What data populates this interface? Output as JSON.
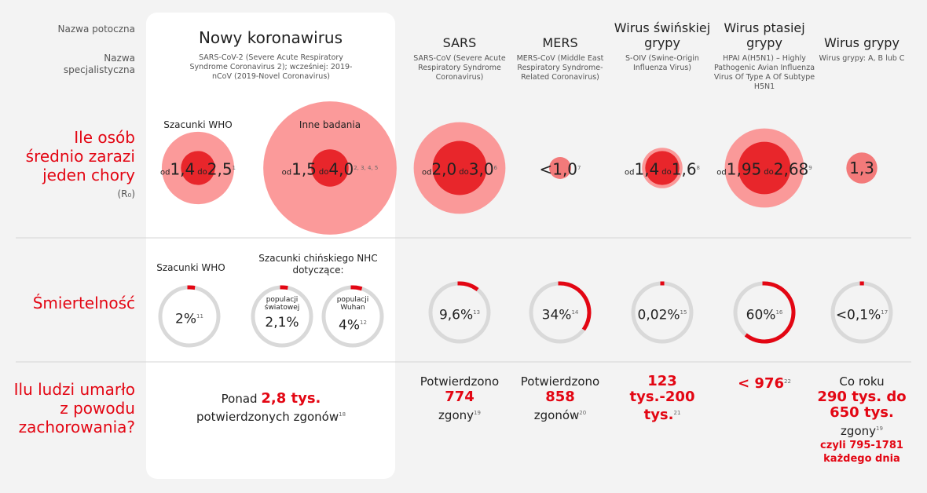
{
  "row_labels": {
    "common_name": "Nazwa potoczna",
    "specialist_name": "Nazwa specjalistyczna",
    "r0": "Ile osób średnio zarazi jeden chory",
    "r0_symbol": "(R₀)",
    "mortality": "Śmiertelność",
    "deaths": "Ilu ludzi umarło z powodu zachorowania?"
  },
  "novel": {
    "name": "Nowy koronawirus",
    "specialist": "SARS-CoV-2 (Severe Acute Respiratory Syndrome Coronavirus 2); wcześniej: 2019-nCoV (2019-Novel Coronavirus)",
    "r0": [
      {
        "caption": "Szacunki WHO",
        "from": "od",
        "low": 1.4,
        "low_label": "1,4",
        "to": "do",
        "high": 2.5,
        "high_label": "2,5",
        "ref": "1"
      },
      {
        "caption": "Inne badania",
        "from": "od",
        "low": 1.5,
        "low_label": "1,5",
        "to": "do",
        "high": 4.0,
        "high_label": "4,0",
        "ref": "2, 3, 4, 5"
      }
    ],
    "mortality_captions": {
      "who": "Szacunki WHO",
      "nhc": "Szacunki chińskiego NHC dotyczące:"
    },
    "mortality": [
      {
        "percent": 2,
        "label": "2%",
        "ref": "11"
      },
      {
        "sublabel": "populacji światowej",
        "percent": 2.1,
        "label": "2,1%"
      },
      {
        "sublabel": "populacji Wuhan",
        "percent": 4,
        "label": "4%",
        "ref": "12"
      }
    ],
    "deaths": {
      "prefix": "Ponad",
      "value": "2,8 tys.",
      "suffix": "potwierdzonych zgonów",
      "ref": "18"
    }
  },
  "viruses": [
    {
      "name": "SARS",
      "specialist": "SARS-CoV (Severe Acute Respiratory Syndrome Coronavirus)",
      "r0": {
        "from": "od",
        "low": 2.0,
        "low_label": "2,0",
        "to": "do",
        "high": 3.0,
        "high_label": "3,0",
        "ref": "6"
      },
      "mortality": {
        "percent": 9.6,
        "label": "9,6%",
        "ref": "13"
      },
      "deaths": {
        "prefix": "Potwierdzono",
        "value": "774",
        "suffix": "zgony",
        "ref": "19"
      }
    },
    {
      "name": "MERS",
      "specialist": "MERS-CoV (Middle East Respiratory Syndrome-Related Coronavirus)",
      "r0": {
        "high": 1.0,
        "high_label": "<1,0",
        "ref": "7"
      },
      "mortality": {
        "percent": 34,
        "label": "34%",
        "ref": "14"
      },
      "deaths": {
        "prefix": "Potwierdzono",
        "value": "858",
        "suffix": "zgonów",
        "ref": "20"
      }
    },
    {
      "name": "Wirus świńskiej grypy",
      "specialist": "S-OIV (Swine-Origin Influenza Virus)",
      "r0": {
        "from": "od",
        "low": 1.4,
        "low_label": "1,4",
        "to": "do",
        "high": 1.6,
        "high_label": "1,6",
        "ref": "8"
      },
      "mortality": {
        "percent": 0.02,
        "label": "0,02%",
        "ref": "15"
      },
      "deaths": {
        "value": "123 tys.-200 tys.",
        "ref": "21"
      }
    },
    {
      "name": "Wirus ptasiej grypy",
      "specialist": "HPAI A(H5N1) – Highly Pathogenic Avian Influenza Virus Of Type A Of Subtype H5N1",
      "r0": {
        "from": "od",
        "low": 1.95,
        "low_label": "1,95",
        "to": "do",
        "high": 2.68,
        "high_label": "2,68",
        "ref": "9"
      },
      "mortality": {
        "percent": 60,
        "label": "60%",
        "ref": "16"
      },
      "deaths": {
        "value": "< 976",
        "ref": "22"
      }
    },
    {
      "name": "Wirus grypy",
      "specialist": "Wirus grypy: A, B lub C",
      "r0": {
        "high": 1.3,
        "high_label": "1,3"
      },
      "mortality": {
        "percent": 0.1,
        "label": "<0,1%",
        "ref": "17"
      },
      "deaths": {
        "prefix": "Co roku",
        "value": "290 tys. do 650 tys.",
        "suffix": "zgony",
        "ref": "19",
        "note": "czyli 795-1781 każdego dnia"
      }
    }
  ]
}
